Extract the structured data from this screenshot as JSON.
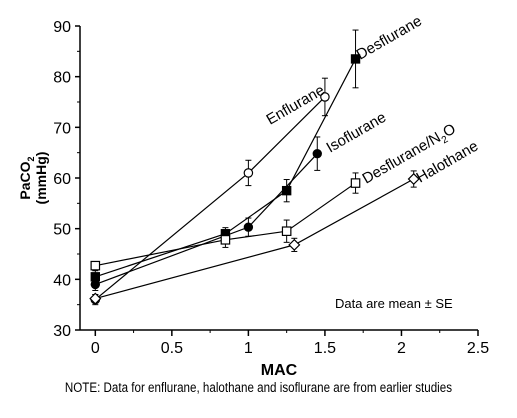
{
  "chart_data": {
    "type": "line",
    "title": "",
    "xlabel": "MAC",
    "ylabel": [
      "PaCO",
      "2",
      "(mmHg)"
    ],
    "xlim": [
      -0.1,
      2.5
    ],
    "ylim": [
      30,
      90
    ],
    "xticks": [
      0,
      0.5,
      1,
      1.5,
      2,
      2.5
    ],
    "xtick_labels": [
      "0",
      "0.5",
      "1",
      "1.5",
      "2",
      "2.5"
    ],
    "yticks": [
      30,
      40,
      50,
      60,
      70,
      80,
      90
    ],
    "ytick_labels": [
      "30",
      "40",
      "50",
      "60",
      "70",
      "80",
      "90"
    ],
    "grid": false,
    "annotation": "Data are mean ± SE",
    "series": [
      {
        "name": "Desflurane",
        "marker": "filled-square",
        "x": [
          0,
          0.85,
          1.25,
          1.7
        ],
        "y": [
          40.5,
          49,
          57.5,
          83.5
        ],
        "err": [
          1.2,
          1.2,
          2.2,
          5.7
        ]
      },
      {
        "name": "Enflurane",
        "marker": "open-circle",
        "x": [
          0,
          1.0,
          1.5
        ],
        "y": [
          36,
          61,
          76
        ],
        "err": [
          1.0,
          2.5,
          3.7
        ]
      },
      {
        "name": "Isoflurane",
        "marker": "filled-circle",
        "x": [
          0,
          1.0,
          1.45
        ],
        "y": [
          39,
          50.3,
          64.8
        ],
        "err": [
          1.2,
          1.8,
          3.3
        ]
      },
      {
        "name": "Desflurane/N",
        "name_sub": "2",
        "name_suffix": "O",
        "marker": "open-square",
        "x": [
          0,
          0.85,
          1.25,
          1.7
        ],
        "y": [
          42.7,
          47.8,
          49.5,
          59
        ],
        "err": [
          0.8,
          1.5,
          2.2,
          2.0
        ]
      },
      {
        "name": "Halothane",
        "marker": "open-diamond",
        "x": [
          0,
          1.3,
          2.08
        ],
        "y": [
          36.2,
          46.8,
          59.8
        ],
        "err": [
          0.8,
          1.3,
          1.6
        ]
      }
    ]
  },
  "footnote": "NOTE: Data for enflurane, halothane and isoflurane are from earlier studies"
}
